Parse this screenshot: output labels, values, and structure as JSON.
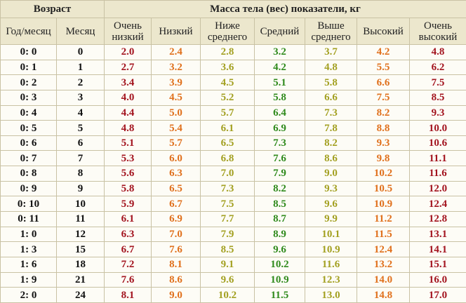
{
  "table": {
    "group_headers": [
      "Возраст",
      "Масса тела (вес) показатели, кг"
    ],
    "headers": [
      "Год/месяц",
      "Месяц",
      "Очень низкий",
      "Низкий",
      "Ниже среднего",
      "Средний",
      "Выше среднего",
      "Высокий",
      "Очень высокий"
    ],
    "value_colors": [
      "#a3141f",
      "#e0701c",
      "#a3a021",
      "#2f8a1c",
      "#a3a021",
      "#e0701c",
      "#a3141f"
    ],
    "rows": [
      [
        "0: 0",
        "0",
        "2.0",
        "2.4",
        "2.8",
        "3.2",
        "3.7",
        "4.2",
        "4.8"
      ],
      [
        "0: 1",
        "1",
        "2.7",
        "3.2",
        "3.6",
        "4.2",
        "4.8",
        "5.5",
        "6.2"
      ],
      [
        "0: 2",
        "2",
        "3.4",
        "3.9",
        "4.5",
        "5.1",
        "5.8",
        "6.6",
        "7.5"
      ],
      [
        "0: 3",
        "3",
        "4.0",
        "4.5",
        "5.2",
        "5.8",
        "6.6",
        "7.5",
        "8.5"
      ],
      [
        "0: 4",
        "4",
        "4.4",
        "5.0",
        "5.7",
        "6.4",
        "7.3",
        "8.2",
        "9.3"
      ],
      [
        "0: 5",
        "5",
        "4.8",
        "5.4",
        "6.1",
        "6.9",
        "7.8",
        "8.8",
        "10.0"
      ],
      [
        "0: 6",
        "6",
        "5.1",
        "5.7",
        "6.5",
        "7.3",
        "8.2",
        "9.3",
        "10.6"
      ],
      [
        "0: 7",
        "7",
        "5.3",
        "6.0",
        "6.8",
        "7.6",
        "8.6",
        "9.8",
        "11.1"
      ],
      [
        "0: 8",
        "8",
        "5.6",
        "6.3",
        "7.0",
        "7.9",
        "9.0",
        "10.2",
        "11.6"
      ],
      [
        "0: 9",
        "9",
        "5.8",
        "6.5",
        "7.3",
        "8.2",
        "9.3",
        "10.5",
        "12.0"
      ],
      [
        "0: 10",
        "10",
        "5.9",
        "6.7",
        "7.5",
        "8.5",
        "9.6",
        "10.9",
        "12.4"
      ],
      [
        "0: 11",
        "11",
        "6.1",
        "6.9",
        "7.7",
        "8.7",
        "9.9",
        "11.2",
        "12.8"
      ],
      [
        "1: 0",
        "12",
        "6.3",
        "7.0",
        "7.9",
        "8.9",
        "10.1",
        "11.5",
        "13.1"
      ],
      [
        "1: 3",
        "15",
        "6.7",
        "7.6",
        "8.5",
        "9.6",
        "10.9",
        "12.4",
        "14.1"
      ],
      [
        "1: 6",
        "18",
        "7.2",
        "8.1",
        "9.1",
        "10.2",
        "11.6",
        "13.2",
        "15.1"
      ],
      [
        "1: 9",
        "21",
        "7.6",
        "8.6",
        "9.6",
        "10.9",
        "12.3",
        "14.0",
        "16.0"
      ],
      [
        "2: 0",
        "24",
        "8.1",
        "9.0",
        "10.2",
        "11.5",
        "13.0",
        "14.8",
        "17.0"
      ]
    ]
  }
}
